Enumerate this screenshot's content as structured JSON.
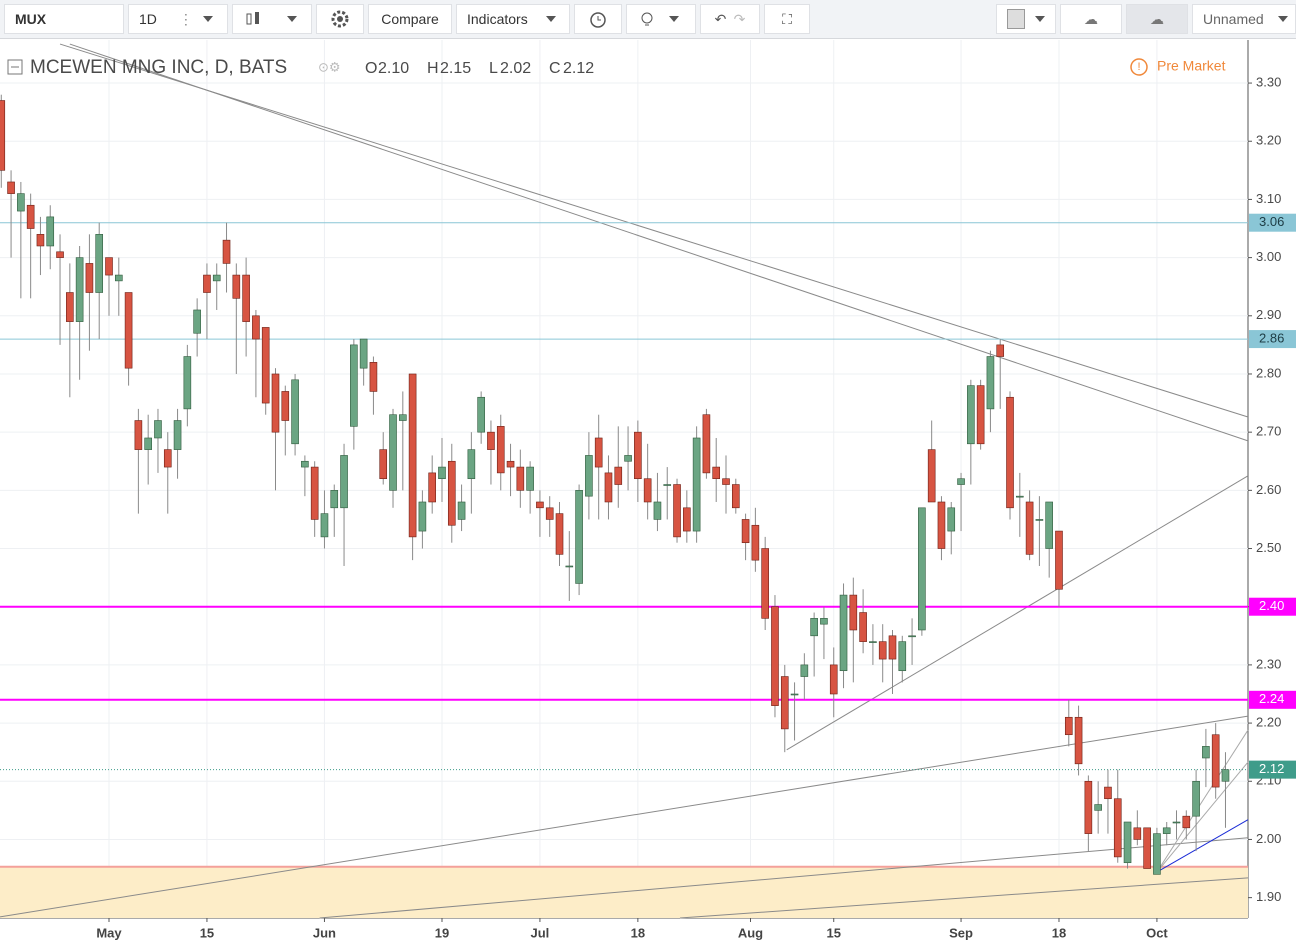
{
  "toolbar": {
    "symbol": "MUX",
    "interval": "1D",
    "compare": "Compare",
    "indicators": "Indicators",
    "layout": "Unnamed"
  },
  "chart_data": {
    "type": "candlestick",
    "title": "MCEWEN MNG INC, D, BATS",
    "status": "Pre Market",
    "ohlc_header": {
      "open_label": "O",
      "open": "2.10",
      "high_label": "H",
      "high": "2.15",
      "low_label": "L",
      "low": "2.02",
      "close_label": "C",
      "close": "2.12"
    },
    "up_color": "#6ba583",
    "down_color": "#d75442",
    "ohlc": [
      [
        3.27,
        3.28,
        3.12,
        3.15
      ],
      [
        3.13,
        3.15,
        3.0,
        3.11
      ],
      [
        3.08,
        3.13,
        2.93,
        3.11
      ],
      [
        3.09,
        3.11,
        2.93,
        3.05
      ],
      [
        3.04,
        3.07,
        2.97,
        3.02
      ],
      [
        3.02,
        3.09,
        2.98,
        3.07
      ],
      [
        3.01,
        3.04,
        2.85,
        3.0
      ],
      [
        2.94,
        2.99,
        2.76,
        2.89
      ],
      [
        2.89,
        3.02,
        2.79,
        3.0
      ],
      [
        2.99,
        3.04,
        2.84,
        2.94
      ],
      [
        2.94,
        3.06,
        2.86,
        3.04
      ],
      [
        3.0,
        3.0,
        2.9,
        2.97
      ],
      [
        2.96,
        3.0,
        2.9,
        2.97
      ],
      [
        2.94,
        2.94,
        2.78,
        2.81
      ],
      [
        2.72,
        2.74,
        2.56,
        2.67
      ],
      [
        2.67,
        2.73,
        2.61,
        2.69
      ],
      [
        2.69,
        2.74,
        2.63,
        2.72
      ],
      [
        2.67,
        2.7,
        2.56,
        2.64
      ],
      [
        2.67,
        2.74,
        2.62,
        2.72
      ],
      [
        2.74,
        2.85,
        2.71,
        2.83
      ],
      [
        2.87,
        2.93,
        2.83,
        2.91
      ],
      [
        2.97,
        2.99,
        2.86,
        2.94
      ],
      [
        2.96,
        2.99,
        2.91,
        2.97
      ],
      [
        3.03,
        3.06,
        2.94,
        2.99
      ],
      [
        2.97,
        2.99,
        2.8,
        2.93
      ],
      [
        2.97,
        3.0,
        2.83,
        2.89
      ],
      [
        2.9,
        2.91,
        2.76,
        2.86
      ],
      [
        2.88,
        2.88,
        2.73,
        2.75
      ],
      [
        2.8,
        2.81,
        2.6,
        2.7
      ],
      [
        2.77,
        2.78,
        2.66,
        2.72
      ],
      [
        2.68,
        2.8,
        2.66,
        2.79
      ],
      [
        2.64,
        2.66,
        2.59,
        2.65
      ],
      [
        2.64,
        2.65,
        2.52,
        2.55
      ],
      [
        2.52,
        2.6,
        2.5,
        2.56
      ],
      [
        2.57,
        2.61,
        2.52,
        2.6
      ],
      [
        2.57,
        2.68,
        2.47,
        2.66
      ],
      [
        2.71,
        2.86,
        2.67,
        2.85
      ],
      [
        2.81,
        2.86,
        2.78,
        2.86
      ],
      [
        2.82,
        2.83,
        2.73,
        2.77
      ],
      [
        2.67,
        2.7,
        2.61,
        2.62
      ],
      [
        2.6,
        2.74,
        2.57,
        2.73
      ],
      [
        2.72,
        2.77,
        2.6,
        2.73
      ],
      [
        2.8,
        2.8,
        2.48,
        2.52
      ],
      [
        2.53,
        2.6,
        2.5,
        2.58
      ],
      [
        2.63,
        2.66,
        2.56,
        2.58
      ],
      [
        2.62,
        2.69,
        2.58,
        2.64
      ],
      [
        2.65,
        2.68,
        2.51,
        2.54
      ],
      [
        2.55,
        2.61,
        2.53,
        2.58
      ],
      [
        2.62,
        2.7,
        2.56,
        2.67
      ],
      [
        2.7,
        2.77,
        2.68,
        2.76
      ],
      [
        2.7,
        2.72,
        2.61,
        2.67
      ],
      [
        2.71,
        2.73,
        2.6,
        2.63
      ],
      [
        2.65,
        2.68,
        2.59,
        2.64
      ],
      [
        2.64,
        2.67,
        2.57,
        2.6
      ],
      [
        2.6,
        2.65,
        2.56,
        2.64
      ],
      [
        2.58,
        2.6,
        2.52,
        2.57
      ],
      [
        2.57,
        2.59,
        2.52,
        2.55
      ],
      [
        2.56,
        2.58,
        2.47,
        2.49
      ],
      [
        2.47,
        2.53,
        2.41,
        2.47
      ],
      [
        2.44,
        2.61,
        2.42,
        2.6
      ],
      [
        2.59,
        2.7,
        2.55,
        2.66
      ],
      [
        2.69,
        2.73,
        2.55,
        2.64
      ],
      [
        2.63,
        2.66,
        2.55,
        2.58
      ],
      [
        2.64,
        2.71,
        2.57,
        2.61
      ],
      [
        2.65,
        2.71,
        2.6,
        2.66
      ],
      [
        2.7,
        2.72,
        2.58,
        2.62
      ],
      [
        2.62,
        2.68,
        2.55,
        2.58
      ],
      [
        2.55,
        2.63,
        2.53,
        2.58
      ],
      [
        2.61,
        2.64,
        2.55,
        2.61
      ],
      [
        2.61,
        2.62,
        2.51,
        2.52
      ],
      [
        2.57,
        2.6,
        2.51,
        2.53
      ],
      [
        2.53,
        2.71,
        2.51,
        2.69
      ],
      [
        2.73,
        2.74,
        2.62,
        2.63
      ],
      [
        2.64,
        2.69,
        2.58,
        2.62
      ],
      [
        2.62,
        2.66,
        2.56,
        2.61
      ],
      [
        2.61,
        2.62,
        2.56,
        2.57
      ],
      [
        2.55,
        2.56,
        2.48,
        2.51
      ],
      [
        2.54,
        2.57,
        2.46,
        2.48
      ],
      [
        2.5,
        2.52,
        2.36,
        2.38
      ],
      [
        2.4,
        2.42,
        2.21,
        2.23
      ],
      [
        2.28,
        2.3,
        2.15,
        2.19
      ],
      [
        2.25,
        2.27,
        2.17,
        2.25
      ],
      [
        2.28,
        2.32,
        2.24,
        2.3
      ],
      [
        2.35,
        2.39,
        2.28,
        2.38
      ],
      [
        2.37,
        2.4,
        2.31,
        2.38
      ],
      [
        2.3,
        2.33,
        2.21,
        2.25
      ],
      [
        2.29,
        2.44,
        2.26,
        2.42
      ],
      [
        2.42,
        2.45,
        2.27,
        2.36
      ],
      [
        2.39,
        2.43,
        2.32,
        2.34
      ],
      [
        2.34,
        2.37,
        2.3,
        2.34
      ],
      [
        2.34,
        2.37,
        2.27,
        2.31
      ],
      [
        2.35,
        2.36,
        2.25,
        2.31
      ],
      [
        2.29,
        2.35,
        2.27,
        2.34
      ],
      [
        2.35,
        2.38,
        2.3,
        2.35
      ],
      [
        2.36,
        2.57,
        2.35,
        2.57
      ],
      [
        2.67,
        2.72,
        2.58,
        2.58
      ],
      [
        2.58,
        2.59,
        2.48,
        2.5
      ],
      [
        2.53,
        2.58,
        2.49,
        2.57
      ],
      [
        2.61,
        2.63,
        2.53,
        2.62
      ],
      [
        2.68,
        2.79,
        2.61,
        2.78
      ],
      [
        2.78,
        2.79,
        2.67,
        2.68
      ],
      [
        2.74,
        2.84,
        2.7,
        2.83
      ],
      [
        2.85,
        2.86,
        2.74,
        2.83
      ],
      [
        2.76,
        2.77,
        2.55,
        2.57
      ],
      [
        2.59,
        2.63,
        2.52,
        2.59
      ],
      [
        2.58,
        2.6,
        2.48,
        2.49
      ],
      [
        2.55,
        2.59,
        2.47,
        2.55
      ],
      [
        2.5,
        2.58,
        2.45,
        2.58
      ],
      [
        2.53,
        2.53,
        2.4,
        2.43
      ],
      [
        2.21,
        2.24,
        2.16,
        2.18
      ],
      [
        2.21,
        2.23,
        2.11,
        2.13
      ],
      [
        2.1,
        2.11,
        1.98,
        2.01
      ],
      [
        2.05,
        2.1,
        2.01,
        2.06
      ],
      [
        2.09,
        2.12,
        2.01,
        2.07
      ],
      [
        2.07,
        2.12,
        1.96,
        1.97
      ],
      [
        1.96,
        2.03,
        1.95,
        2.03
      ],
      [
        2.02,
        2.05,
        1.99,
        2.0
      ],
      [
        2.02,
        2.02,
        1.95,
        1.95
      ],
      [
        1.94,
        2.02,
        1.94,
        2.01
      ],
      [
        2.01,
        2.03,
        1.99,
        2.02
      ],
      [
        2.03,
        2.05,
        2.0,
        2.03
      ],
      [
        2.04,
        2.05,
        2.0,
        2.02
      ],
      [
        2.04,
        2.12,
        1.98,
        2.1
      ],
      [
        2.14,
        2.19,
        2.09,
        2.16
      ],
      [
        2.18,
        2.2,
        2.07,
        2.09
      ],
      [
        2.1,
        2.15,
        2.02,
        2.12
      ]
    ],
    "xlim": [
      -0.13,
      127.3
    ],
    "ylim": [
      1.865,
      3.374
    ],
    "xticks": [
      {
        "value": 11,
        "label": "May"
      },
      {
        "value": 21,
        "label": "15"
      },
      {
        "value": 33,
        "label": "Jun"
      },
      {
        "value": 45,
        "label": "19"
      },
      {
        "value": 55,
        "label": "Jul"
      },
      {
        "value": 65,
        "label": "18"
      },
      {
        "value": 76.5,
        "label": "Aug"
      },
      {
        "value": 85,
        "label": "15"
      },
      {
        "value": 98,
        "label": "Sep"
      },
      {
        "value": 108,
        "label": "18"
      },
      {
        "value": 118,
        "label": "Oct"
      }
    ],
    "yticks": [
      {
        "value": 1.9,
        "label": "1.90"
      },
      {
        "value": 2.0,
        "label": "2.00"
      },
      {
        "value": 2.1,
        "label": "2.10"
      },
      {
        "value": 2.2,
        "label": "2.20"
      },
      {
        "value": 2.3,
        "label": "2.30"
      },
      {
        "value": 2.4,
        "label": "2.40"
      },
      {
        "value": 2.5,
        "label": "2.50"
      },
      {
        "value": 2.6,
        "label": "2.60"
      },
      {
        "value": 2.7,
        "label": "2.70"
      },
      {
        "value": 2.8,
        "label": "2.80"
      },
      {
        "value": 2.9,
        "label": "2.90"
      },
      {
        "value": 3.0,
        "label": "3.00"
      },
      {
        "value": 3.1,
        "label": "3.10"
      },
      {
        "value": 3.2,
        "label": "3.20"
      },
      {
        "value": 3.3,
        "label": "3.30"
      }
    ],
    "grid": true,
    "zone": {
      "top": 1.953,
      "color": "#fdedc8",
      "edge_color": "#f4a09a"
    },
    "hlines": [
      {
        "value": 3.06,
        "label": "3.06",
        "color": "#8ac6d6",
        "text_color": "#1d3c44",
        "width": 1
      },
      {
        "value": 2.86,
        "label": "2.86",
        "color": "#8ac6d6",
        "text_color": "#1d3c44",
        "width": 1
      },
      {
        "value": 2.4,
        "label": "2.40",
        "color": "#ff00ff",
        "text_color": "#ffffff",
        "width": 2
      },
      {
        "value": 2.24,
        "label": "2.24",
        "color": "#ff00ff",
        "text_color": "#ffffff",
        "width": 2
      },
      {
        "value": 2.12,
        "label": "2.12",
        "color": "#3f9c8a",
        "text_color": "#ffffff",
        "width": 1,
        "dashed": true
      }
    ],
    "drawings": [
      {
        "points": [
          6.0,
          3.367,
          127.3,
          2.726
        ],
        "color": "#8a8a8a"
      },
      {
        "points": [
          7.0,
          3.367,
          127.3,
          2.685
        ],
        "color": "#8a8a8a"
      },
      {
        "points": [
          80.2,
          2.154,
          127.3,
          2.625
        ],
        "color": "#8a8a8a"
      },
      {
        "points": [
          -0.13,
          1.867,
          127.3,
          2.212
        ],
        "color": "#8a8a8a"
      },
      {
        "points": [
          32.5,
          1.865,
          127.3,
          2.003
        ],
        "color": "#8a8a8a"
      },
      {
        "points": [
          69.3,
          1.865,
          127.3,
          1.934
        ],
        "color": "#8a8a8a"
      },
      {
        "points": [
          118,
          1.944,
          127.3,
          2.188
        ],
        "color": "#aaaaaa"
      },
      {
        "points": [
          118,
          1.944,
          127.3,
          2.133
        ],
        "color": "#aaaaaa"
      },
      {
        "points": [
          118,
          1.944,
          127.3,
          2.034
        ],
        "color": "#1a2bd6"
      }
    ]
  }
}
